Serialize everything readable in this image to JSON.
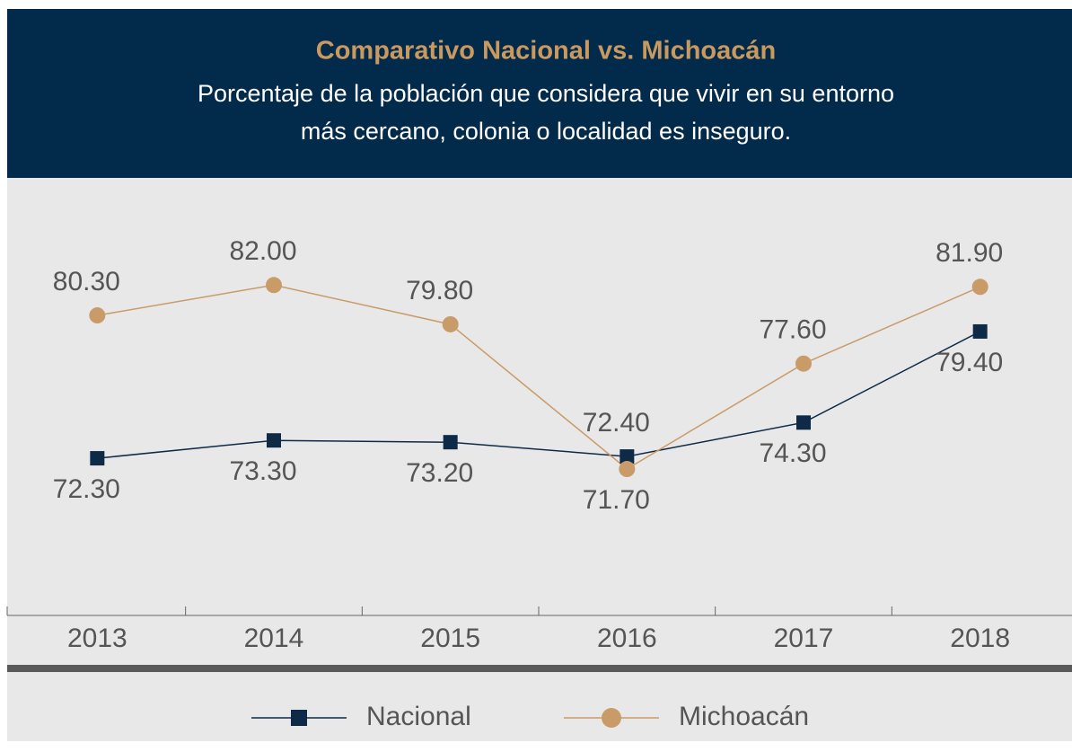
{
  "chart_data": {
    "type": "line",
    "title": "Comparativo Nacional vs. Michoacán",
    "subtitle": [
      "Porcentaje de la población que considera que vivir en su entorno",
      "más cercano, colonia o localidad es inseguro."
    ],
    "categories": [
      "2013",
      "2014",
      "2015",
      "2016",
      "2017",
      "2018"
    ],
    "series": [
      {
        "name": "Nacional",
        "color": "#0e2a47",
        "marker": "square",
        "values": [
          72.3,
          73.3,
          73.2,
          72.4,
          74.3,
          79.4
        ],
        "value_labels": [
          "72.30",
          "73.30",
          "73.20",
          "72.40",
          "74.30",
          "79.40"
        ]
      },
      {
        "name": "Michoacán",
        "color": "#c99b69",
        "marker": "circle",
        "values": [
          80.3,
          82.0,
          79.8,
          71.7,
          77.6,
          81.9
        ],
        "value_labels": [
          "80.30",
          "82.00",
          "79.80",
          "71.70",
          "77.60",
          "81.90"
        ]
      }
    ],
    "ylim": [
      63.5,
      88
    ]
  }
}
